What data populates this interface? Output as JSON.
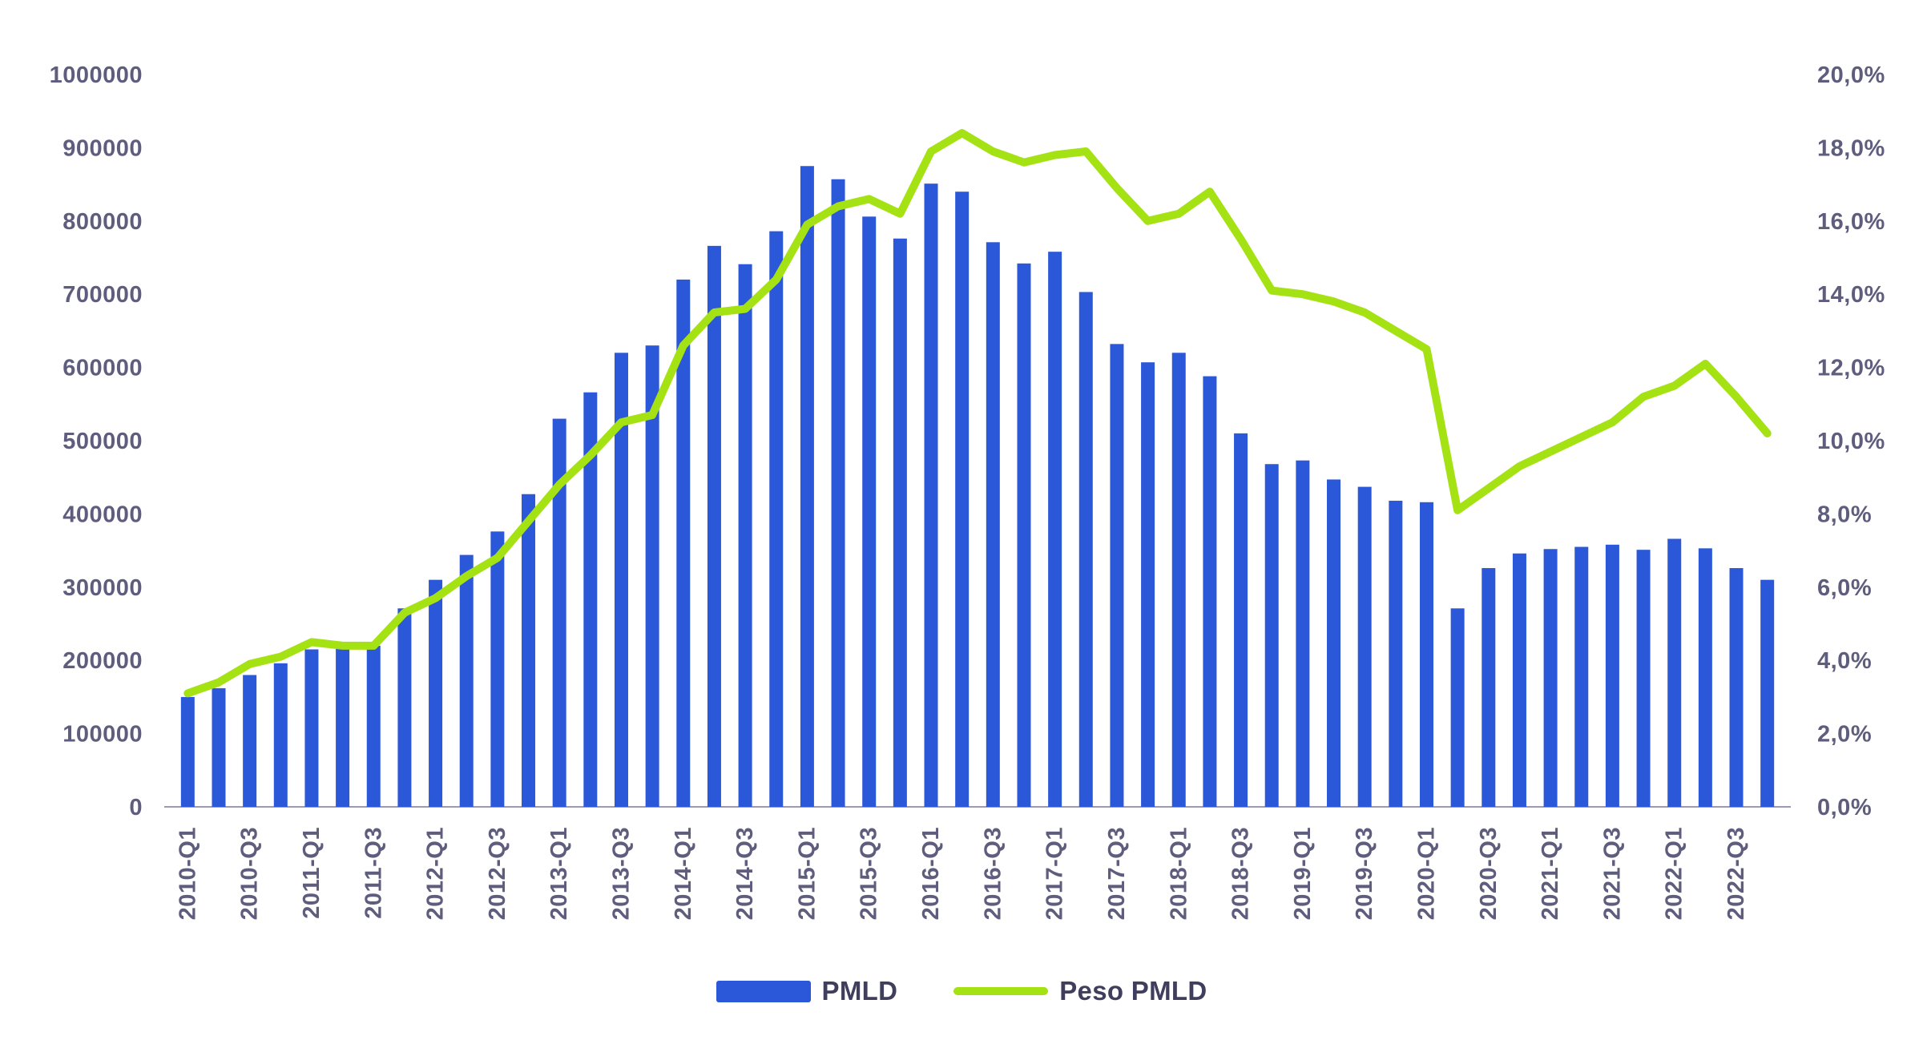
{
  "chart_data": {
    "type": "combo-bar-line",
    "title": "",
    "grid": false,
    "legend_position": "bottom-center",
    "categories": [
      "2010-Q1",
      "2010-Q2",
      "2010-Q3",
      "2010-Q4",
      "2011-Q1",
      "2011-Q2",
      "2011-Q3",
      "2011-Q4",
      "2012-Q1",
      "2012-Q2",
      "2012-Q3",
      "2012-Q4",
      "2013-Q1",
      "2013-Q2",
      "2013-Q3",
      "2013-Q4",
      "2014-Q1",
      "2014-Q2",
      "2014-Q3",
      "2014-Q4",
      "2015-Q1",
      "2015-Q2",
      "2015-Q3",
      "2015-Q4",
      "2016-Q1",
      "2016-Q2",
      "2016-Q3",
      "2016-Q4",
      "2017-Q1",
      "2017-Q2",
      "2017-Q3",
      "2017-Q4",
      "2018-Q1",
      "2018-Q2",
      "2018-Q3",
      "2018-Q4",
      "2019-Q1",
      "2019-Q2",
      "2019-Q3",
      "2019-Q4",
      "2020-Q1",
      "2020-Q2",
      "2020-Q3",
      "2020-Q4",
      "2021-Q1",
      "2021-Q2",
      "2021-Q3",
      "2021-Q4",
      "2022-Q1",
      "2022-Q2",
      "2022-Q3",
      "2022-Q4"
    ],
    "series": [
      {
        "name": "PMLD",
        "type": "bar",
        "axis": "left",
        "color": "#2b57d9",
        "values": [
          150000,
          162000,
          180000,
          196000,
          215000,
          221000,
          220000,
          271000,
          310000,
          344000,
          376000,
          427000,
          530000,
          566000,
          620000,
          630000,
          720000,
          766000,
          741000,
          786000,
          875000,
          857000,
          806000,
          776000,
          851000,
          840000,
          771000,
          742000,
          758000,
          703000,
          632000,
          607000,
          620000,
          588000,
          510000,
          468000,
          473000,
          447000,
          437000,
          418000,
          416000,
          271000,
          326000,
          346000,
          352000,
          355000,
          358000,
          351000,
          366000,
          353000,
          326000,
          310000
        ]
      },
      {
        "name": "Peso PMLD",
        "type": "line",
        "axis": "right",
        "color": "#a5e214",
        "values": [
          3.1,
          3.4,
          3.9,
          4.1,
          4.5,
          4.4,
          4.4,
          5.3,
          5.7,
          6.3,
          6.8,
          7.8,
          8.8,
          9.6,
          10.5,
          10.7,
          12.6,
          13.5,
          13.6,
          14.4,
          15.9,
          16.4,
          16.6,
          16.2,
          17.9,
          18.4,
          17.9,
          17.6,
          17.8,
          17.9,
          16.9,
          16.0,
          16.2,
          16.8,
          15.5,
          14.1,
          14.0,
          13.8,
          13.5,
          13.0,
          12.5,
          8.1,
          8.7,
          9.3,
          9.7,
          10.1,
          10.5,
          11.2,
          11.5,
          12.1,
          11.2,
          10.2
        ]
      }
    ],
    "left_axis": {
      "min": 0,
      "max": 1000000,
      "step": 100000,
      "tick_labels": [
        "0",
        "100000",
        "200000",
        "300000",
        "400000",
        "500000",
        "600000",
        "700000",
        "800000",
        "900000",
        "1000000"
      ]
    },
    "right_axis": {
      "min": 0,
      "max": 20,
      "step": 2,
      "tick_labels": [
        "0,0%",
        "2,0%",
        "4,0%",
        "6,0%",
        "8,0%",
        "10,0%",
        "12,0%",
        "14,0%",
        "16,0%",
        "18,0%",
        "20,0%"
      ]
    },
    "x_tick_labels_shown": [
      "2010-Q1",
      "2010-Q3",
      "2011-Q1",
      "2011-Q3",
      "2012-Q1",
      "2012-Q3",
      "2013-Q1",
      "2013-Q3",
      "2014-Q1",
      "2014-Q3",
      "2015-Q1",
      "2015-Q3",
      "2016-Q1",
      "2016-Q3",
      "2017-Q1",
      "2017-Q3",
      "2018-Q1",
      "2018-Q3",
      "2019-Q1",
      "2019-Q3",
      "2020-Q1",
      "2020-Q3",
      "2021-Q1",
      "2021-Q3",
      "2022-Q1",
      "2022-Q3"
    ]
  },
  "legend": {
    "items": [
      {
        "label": "PMLD"
      },
      {
        "label": "Peso PMLD"
      }
    ]
  },
  "colors": {
    "bar": "#2b57d9",
    "line": "#a5e214",
    "axis_text": "#5e5d7d",
    "legend_text": "#3f3e5c",
    "baseline": "#9b9ab0"
  }
}
